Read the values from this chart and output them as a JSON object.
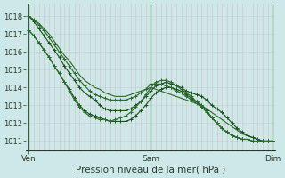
{
  "background_color": "#cce8e8",
  "plot_bg_color": "#cce8e8",
  "grid_color_h": "#c0d8d8",
  "grid_color_v": "#e8b8b8",
  "line_colors": [
    "#2d6a2d",
    "#2d6a2d",
    "#2d6a2d",
    "#2d6a2d",
    "#2d6a2d"
  ],
  "ylim": [
    1010.5,
    1018.7
  ],
  "xlabel": "Pression niveau de la mer( hPa )",
  "xtick_labels": [
    "Ven",
    "Sam",
    "Dim"
  ],
  "xtick_positions": [
    0,
    48,
    96
  ],
  "series": [
    {
      "x": [
        0,
        2,
        4,
        6,
        8,
        10,
        12,
        14,
        16,
        18,
        20,
        22,
        24,
        26,
        28,
        30,
        32,
        34,
        36,
        38,
        40,
        42,
        44,
        46,
        48,
        50,
        52,
        54,
        56,
        58,
        60,
        62,
        64,
        66,
        68,
        70,
        72,
        74,
        76,
        78,
        80,
        82,
        84,
        86,
        88,
        90,
        92,
        94,
        96
      ],
      "y": [
        1018.0,
        1017.8,
        1017.6,
        1017.3,
        1017.0,
        1016.6,
        1016.2,
        1015.8,
        1015.5,
        1015.1,
        1014.7,
        1014.4,
        1014.2,
        1014.0,
        1013.9,
        1013.7,
        1013.6,
        1013.5,
        1013.5,
        1013.5,
        1013.6,
        1013.7,
        1013.8,
        1013.9,
        1014.0,
        1013.9,
        1013.8,
        1013.7,
        1013.6,
        1013.5,
        1013.4,
        1013.3,
        1013.2,
        1013.1,
        1013.0,
        1012.8,
        1012.6,
        1012.4,
        1012.2,
        1012.0,
        1011.8,
        1011.6,
        1011.4,
        1011.3,
        1011.2,
        1011.1,
        1011.0,
        1011.0,
        1011.0
      ],
      "color": "#2a6a2a",
      "lw": 0.8,
      "marker": null
    },
    {
      "x": [
        0,
        2,
        4,
        6,
        8,
        10,
        12,
        14,
        16,
        18,
        20,
        22,
        24,
        26,
        28,
        30,
        32,
        34,
        36,
        38,
        40,
        42,
        44,
        46,
        48,
        50,
        52,
        54,
        56,
        58,
        60,
        62,
        64,
        66,
        68,
        70,
        72,
        74,
        76,
        78,
        80,
        82,
        84,
        86,
        88,
        90,
        92,
        94,
        96
      ],
      "y": [
        1018.0,
        1017.7,
        1017.3,
        1016.9,
        1016.5,
        1016.1,
        1015.7,
        1015.2,
        1014.8,
        1014.4,
        1014.0,
        1013.7,
        1013.5,
        1013.3,
        1013.0,
        1012.8,
        1012.7,
        1012.7,
        1012.7,
        1012.7,
        1012.8,
        1013.0,
        1013.2,
        1013.5,
        1013.8,
        1014.1,
        1014.2,
        1014.3,
        1014.2,
        1014.1,
        1014.0,
        1013.8,
        1013.7,
        1013.6,
        1013.5,
        1013.3,
        1013.0,
        1012.8,
        1012.6,
        1012.3,
        1012.0,
        1011.7,
        1011.5,
        1011.3,
        1011.2,
        1011.1,
        1011.0,
        1011.0,
        1011.0
      ],
      "color": "#1a501a",
      "lw": 0.8,
      "marker": "+"
    },
    {
      "x": [
        0,
        2,
        4,
        6,
        8,
        10,
        12,
        14,
        16,
        18,
        20,
        22,
        24,
        26,
        28,
        30,
        32,
        34,
        36,
        38,
        40,
        42,
        44,
        46,
        48,
        50,
        52,
        54,
        56,
        58,
        60,
        62,
        64,
        66,
        68,
        70,
        72,
        74,
        76,
        78,
        80,
        82,
        84,
        86,
        88,
        90,
        92,
        94,
        96
      ],
      "y": [
        1017.2,
        1016.9,
        1016.5,
        1016.1,
        1015.7,
        1015.2,
        1014.8,
        1014.3,
        1013.9,
        1013.4,
        1013.0,
        1012.7,
        1012.5,
        1012.4,
        1012.3,
        1012.2,
        1012.1,
        1012.1,
        1012.1,
        1012.1,
        1012.2,
        1012.4,
        1012.7,
        1013.0,
        1013.4,
        1013.7,
        1013.9,
        1014.0,
        1014.0,
        1013.9,
        1013.8,
        1013.6,
        1013.4,
        1013.2,
        1013.0,
        1012.7,
        1012.3,
        1012.0,
        1011.7,
        1011.5,
        1011.3,
        1011.2,
        1011.1,
        1011.1,
        1011.0,
        1011.0,
        1011.0,
        1011.0,
        1011.0
      ],
      "color": "#1a501a",
      "lw": 0.8,
      "marker": "+"
    },
    {
      "x": [
        0,
        2,
        4,
        6,
        8,
        10,
        12,
        14,
        16,
        18,
        20,
        22,
        24,
        26,
        28,
        30,
        32,
        34,
        36,
        38,
        40,
        42,
        44,
        46,
        48,
        50,
        52,
        54,
        56,
        58,
        60,
        62,
        64,
        66,
        68,
        70,
        72,
        74,
        76,
        78,
        80,
        82,
        84,
        86,
        88,
        90,
        92,
        94,
        96
      ],
      "y": [
        1017.2,
        1016.9,
        1016.5,
        1016.1,
        1015.7,
        1015.2,
        1014.8,
        1014.3,
        1013.8,
        1013.3,
        1012.9,
        1012.6,
        1012.4,
        1012.3,
        1012.2,
        1012.2,
        1012.1,
        1012.2,
        1012.3,
        1012.4,
        1012.6,
        1012.9,
        1013.2,
        1013.6,
        1014.0,
        1014.3,
        1014.4,
        1014.4,
        1014.3,
        1014.1,
        1013.9,
        1013.7,
        1013.5,
        1013.2,
        1013.0,
        1012.7,
        1012.3,
        1012.0,
        1011.7,
        1011.5,
        1011.3,
        1011.2,
        1011.1,
        1011.1,
        1011.0,
        1011.0,
        1011.0,
        1011.0,
        1011.0
      ],
      "color": "#2a6a2a",
      "lw": 0.8,
      "marker": "+"
    },
    {
      "x": [
        0,
        2,
        4,
        6,
        8,
        10,
        12,
        14,
        16,
        18,
        20,
        22,
        24,
        26,
        28,
        30,
        32,
        34,
        36,
        38,
        40,
        42,
        44,
        46,
        48,
        50,
        52,
        54,
        56,
        58,
        60,
        62,
        64,
        66,
        68,
        70,
        72,
        74,
        76,
        78,
        80,
        82,
        84,
        86,
        88,
        90,
        92,
        94,
        96
      ],
      "y": [
        1018.0,
        1017.8,
        1017.5,
        1017.2,
        1016.8,
        1016.4,
        1016.0,
        1015.6,
        1015.2,
        1014.8,
        1014.4,
        1014.1,
        1013.8,
        1013.6,
        1013.5,
        1013.4,
        1013.3,
        1013.3,
        1013.3,
        1013.3,
        1013.4,
        1013.5,
        1013.7,
        1013.9,
        1014.2,
        1014.2,
        1014.2,
        1014.1,
        1014.0,
        1013.8,
        1013.7,
        1013.5,
        1013.3,
        1013.1,
        1012.9,
        1012.6,
        1012.3,
        1012.0,
        1011.7,
        1011.5,
        1011.3,
        1011.2,
        1011.1,
        1011.1,
        1011.0,
        1011.0,
        1011.0,
        1011.0,
        1011.0
      ],
      "color": "#2a6a2a",
      "lw": 0.8,
      "marker": "+"
    }
  ],
  "yticks": [
    1011,
    1012,
    1013,
    1014,
    1015,
    1016,
    1017,
    1018
  ],
  "ytick_fontsize": 6,
  "xtick_fontsize": 6.5,
  "xlabel_fontsize": 7.5,
  "day_line_color": "#3a5a3a",
  "xlim": [
    -1,
    97
  ]
}
